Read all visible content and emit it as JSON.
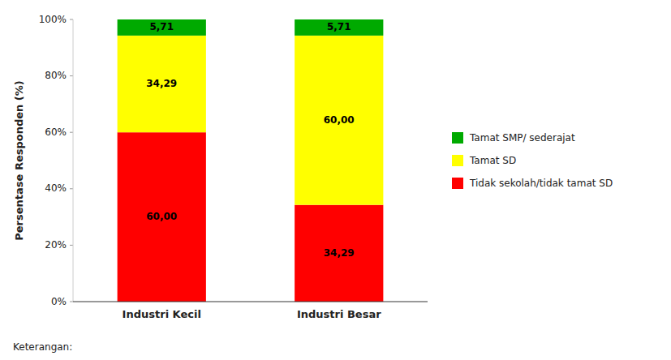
{
  "chart_data": {
    "type": "bar",
    "stacked": true,
    "categories": [
      "Industri Kecil",
      "Industri Besar"
    ],
    "series": [
      {
        "name": "Tidak sekolah/tidak tamat SD",
        "color": "#FF0000",
        "values": [
          60.0,
          34.29
        ],
        "value_labels": [
          "60,00",
          "34,29"
        ]
      },
      {
        "name": "Tamat SD",
        "color": "#FFFF00",
        "values": [
          34.29,
          60.0
        ],
        "value_labels": [
          "34,29",
          "60,00"
        ]
      },
      {
        "name": "Tamat SMP/ sederajat",
        "color": "#00AA00",
        "values": [
          5.71,
          5.71
        ],
        "value_labels": [
          "5,71",
          "5,71"
        ]
      }
    ],
    "y_label": "Persentase Responden (%)",
    "ylim": [
      0,
      100
    ],
    "yticks": [
      {
        "value": 0,
        "label": "0%"
      },
      {
        "value": 20,
        "label": "20%"
      },
      {
        "value": 40,
        "label": "40%"
      },
      {
        "value": 60,
        "label": "60%"
      },
      {
        "value": 80,
        "label": "80%"
      },
      {
        "value": 100,
        "label": "100%"
      }
    ],
    "data_labels": true,
    "grid": false,
    "legend": "right",
    "annotations": [
      "Keterangan:"
    ]
  }
}
